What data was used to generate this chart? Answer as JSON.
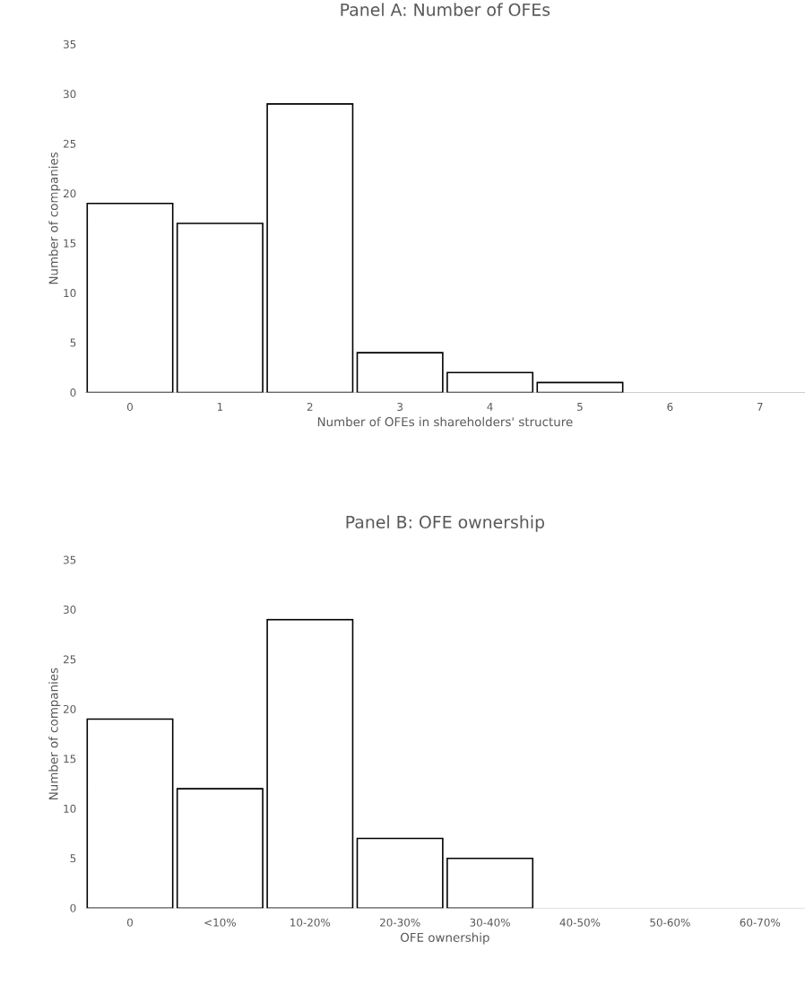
{
  "chart_data": [
    {
      "type": "bar",
      "title": "Panel A: Number of OFEs",
      "xlabel": "Number of OFEs in shareholders' structure",
      "ylabel": "Number of companies",
      "categories": [
        "0",
        "1",
        "2",
        "3",
        "4",
        "5",
        "6",
        "7"
      ],
      "values": [
        19,
        17,
        29,
        4,
        2,
        1,
        0,
        0
      ],
      "color": "#ffffff",
      "ylim": [
        0,
        35
      ],
      "yticks": [
        0,
        5,
        10,
        15,
        20,
        25,
        30,
        35
      ]
    },
    {
      "type": "bar",
      "title": "Panel B: OFE ownership",
      "xlabel": "OFE ownership",
      "ylabel": "Number of companies",
      "categories": [
        "0",
        "<10%",
        "10-20%",
        "20-30%",
        "30-40%",
        "40-50%",
        "50-60%",
        "60-70%"
      ],
      "values": [
        19,
        12,
        29,
        7,
        5,
        0,
        0,
        0
      ],
      "color": "#ffffff",
      "ylim": [
        0,
        35
      ],
      "yticks": [
        0,
        5,
        10,
        15,
        20,
        25,
        30,
        35
      ]
    }
  ]
}
